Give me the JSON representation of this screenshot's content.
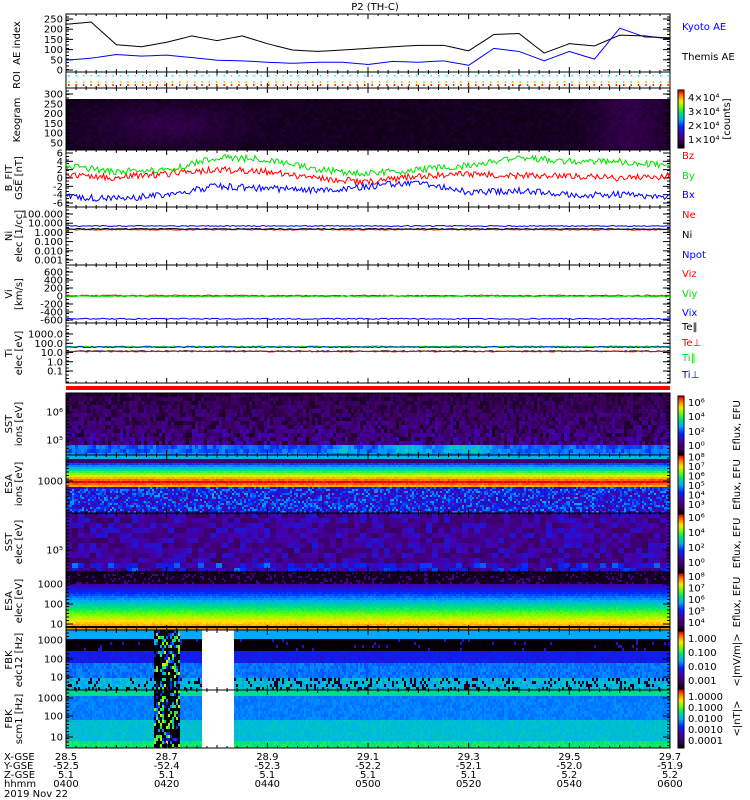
{
  "title": "P2 (TH-C)",
  "date": "2019 Nov 22",
  "colors": {
    "black": "#000000",
    "blue": "#0000ff",
    "red": "#ff0000",
    "green": "#00e000"
  },
  "chart_data": {
    "type": "multi-panel time series and spectrograms",
    "time_axis": {
      "row_labels": [
        "X-GSE",
        "Y-GSE",
        "Z-GSE",
        "hhmm"
      ],
      "ticks": [
        {
          "x": "28.5",
          "y": "-52.5",
          "z": "5.1",
          "t": "0400"
        },
        {
          "x": "28.7",
          "y": "-52.4",
          "z": "5.1",
          "t": "0420"
        },
        {
          "x": "28.9",
          "y": "-52.3",
          "z": "5.1",
          "t": "0440"
        },
        {
          "x": "29.1",
          "y": "-52.2",
          "z": "5.1",
          "t": "0500"
        },
        {
          "x": "29.3",
          "y": "-52.1",
          "z": "5.1",
          "t": "0520"
        },
        {
          "x": "29.5",
          "y": "-52.0",
          "z": "5.2",
          "t": "0540"
        },
        {
          "x": "29.7",
          "y": "-51.9",
          "z": "5.2",
          "t": "0600"
        }
      ],
      "range_minutes": [
        0,
        120
      ]
    },
    "panels": {
      "ae": {
        "type": "line",
        "label": "AE index",
        "ticks": [
          "0",
          "50",
          "100",
          "150",
          "200",
          "250"
        ],
        "ylim": [
          0,
          260
        ],
        "legend": [
          "Kyoto AE",
          "Themis AE"
        ],
        "t": [
          0,
          5,
          10,
          15,
          20,
          25,
          30,
          35,
          40,
          45,
          50,
          55,
          60,
          65,
          70,
          75,
          80,
          85,
          90,
          95,
          100,
          105,
          110,
          115,
          120
        ],
        "series": [
          {
            "name": "Kyoto AE",
            "color": "#0000ff",
            "values": [
              48,
              58,
              76,
              68,
              73,
              61,
              48,
              45,
              38,
              33,
              38,
              38,
              27,
              42,
              38,
              45,
              23,
              106,
              91,
              45,
              91,
              53,
              205,
              162,
              159
            ]
          },
          {
            "name": "Themis AE",
            "color": "#000000",
            "values": [
              224,
              235,
              124,
              114,
              136,
              167,
              144,
              167,
              129,
              98,
              91,
              98,
              106,
              114,
              121,
              121,
              94,
              174,
              179,
              83,
              129,
              118,
              171,
              167,
              152
            ]
          }
        ]
      },
      "roi": {
        "label": "ROI"
      },
      "keogram": {
        "type": "heatmap",
        "label": "Keogram",
        "ticks": [
          "50",
          "100",
          "150",
          "200",
          "250",
          "300"
        ],
        "cbar_ticks": [
          "1×10⁴",
          "2×10⁴",
          "3×10⁴",
          "4×10⁴"
        ],
        "cbar_label": "[counts]"
      },
      "bfit": {
        "type": "line",
        "label": "B_FIT",
        "sublabel": "GSE [nT]",
        "ticks": [
          "-6",
          "-4",
          "-2",
          "0",
          "2",
          "4",
          "6"
        ],
        "ylim": [
          -6,
          6
        ],
        "legend": [
          "Bz",
          "By",
          "Bx"
        ],
        "t": [
          0,
          10,
          20,
          30,
          40,
          50,
          60,
          70,
          80,
          90,
          100,
          110,
          120
        ],
        "series": [
          {
            "name": "Bz",
            "color": "#ff0000",
            "values": [
              0.5,
              0.2,
              1,
              2,
              1.5,
              0,
              -1,
              0.5,
              1,
              0.5,
              0.5,
              0,
              0.5
            ]
          },
          {
            "name": "By",
            "color": "#00e000",
            "values": [
              3,
              1.5,
              2,
              5,
              4.5,
              2,
              1,
              2,
              3,
              5,
              4,
              4,
              3
            ]
          },
          {
            "name": "Bx",
            "color": "#0000ff",
            "values": [
              -4.5,
              -5,
              -4,
              -2,
              -2.5,
              -3,
              -2,
              -1,
              -3.5,
              -3,
              -4,
              -4,
              -4.5
            ]
          }
        ]
      },
      "ni": {
        "type": "line",
        "label": "Ni",
        "sublabel": "elec [1/cc]",
        "ticks": [
          "0.001",
          "0.010",
          "0.100",
          "1.000",
          "10.000",
          "100.000"
        ],
        "ylim_log": [
          0.001,
          100
        ],
        "legend": [
          "Ne",
          "Ni",
          "Npot"
        ],
        "series": [
          {
            "name": "Ne",
            "color": "#ff0000",
            "level": 2.0
          },
          {
            "name": "Ni",
            "color": "#000000",
            "level": 2.4
          },
          {
            "name": "Npot",
            "color": "#0000ff",
            "level": 5.0
          }
        ]
      },
      "vi": {
        "type": "line",
        "label": "Vi",
        "sublabel": "[km/s]",
        "ticks": [
          "-600",
          "-400",
          "-200",
          "0",
          "200",
          "400",
          "600"
        ],
        "ylim": [
          -600,
          600
        ],
        "legend": [
          "Viz",
          "Viy",
          "Vix"
        ],
        "series": [
          {
            "name": "Viz",
            "color": "#ff0000",
            "level": 10
          },
          {
            "name": "Viy",
            "color": "#00e000",
            "level": -10
          },
          {
            "name": "Vix",
            "color": "#0000ff",
            "level": -570
          }
        ]
      },
      "ti": {
        "type": "line",
        "label": "Ti",
        "sublabel": "elec [eV]",
        "ticks": [
          "0.1",
          "1.0",
          "10.0",
          "100.0",
          "1000.0"
        ],
        "ylim_log": [
          0.03,
          5000
        ],
        "legend": [
          "Te‖",
          "Te⊥",
          "Ti‖",
          "Ti⊥"
        ],
        "series": [
          {
            "name": "Te‖",
            "color": "#000000",
            "level": 14
          },
          {
            "name": "Te⊥",
            "color": "#ff0000",
            "level": 13
          },
          {
            "name": "Ti‖",
            "color": "#00e000",
            "level": 45
          },
          {
            "name": "Ti⊥",
            "color": "#0000ff",
            "level": 38
          }
        ]
      },
      "sst_ions": {
        "type": "heatmap",
        "label": "SST",
        "sublabel": "ions [eV]",
        "ticks": [
          "10⁵",
          "10⁶"
        ],
        "cbar_ticks": [
          "10⁰",
          "10²",
          "10⁴",
          "10⁶"
        ],
        "cbar_label": "Eflux, EFU"
      },
      "esa_ions": {
        "type": "heatmap",
        "label": "ESA",
        "sublabel": "ions [eV]",
        "ticks": [
          "1000"
        ],
        "cbar_ticks": [
          "10³",
          "10⁴",
          "10⁵",
          "10⁶",
          "10⁷",
          "10⁸"
        ],
        "cbar_label": "Eflux, EFU"
      },
      "sst_elec": {
        "type": "heatmap",
        "label": "SST",
        "sublabel": "elec [eV]",
        "ticks": [
          "10⁵"
        ],
        "cbar_ticks": [
          "10⁰",
          "10²",
          "10⁴",
          "10⁶"
        ],
        "cbar_label": "Eflux, EFU"
      },
      "esa_elec": {
        "type": "heatmap",
        "label": "ESA",
        "sublabel": "elec [eV]",
        "ticks": [
          "10",
          "100",
          "1000"
        ],
        "cbar_ticks": [
          "10⁴",
          "10⁵",
          "10⁶",
          "10⁷",
          "10⁸"
        ],
        "cbar_label": "Eflux, EFU"
      },
      "fbk_edc12": {
        "type": "heatmap",
        "label": "FBK",
        "sublabel": "edc12 [Hz]",
        "ticks": [
          "10",
          "100",
          "1000"
        ],
        "cbar_ticks": [
          "0.001",
          "0.010",
          "0.100",
          "1.000"
        ],
        "cbar_label": "<|mV/m|>"
      },
      "fbk_scm1": {
        "type": "heatmap",
        "label": "FBK",
        "sublabel": "scm1 [Hz]",
        "ticks": [
          "10",
          "100",
          "1000"
        ],
        "cbar_ticks": [
          "0.0001",
          "0.0010",
          "0.0100",
          "0.1000",
          "1.0000"
        ],
        "cbar_label": "<|nT|>"
      }
    }
  }
}
